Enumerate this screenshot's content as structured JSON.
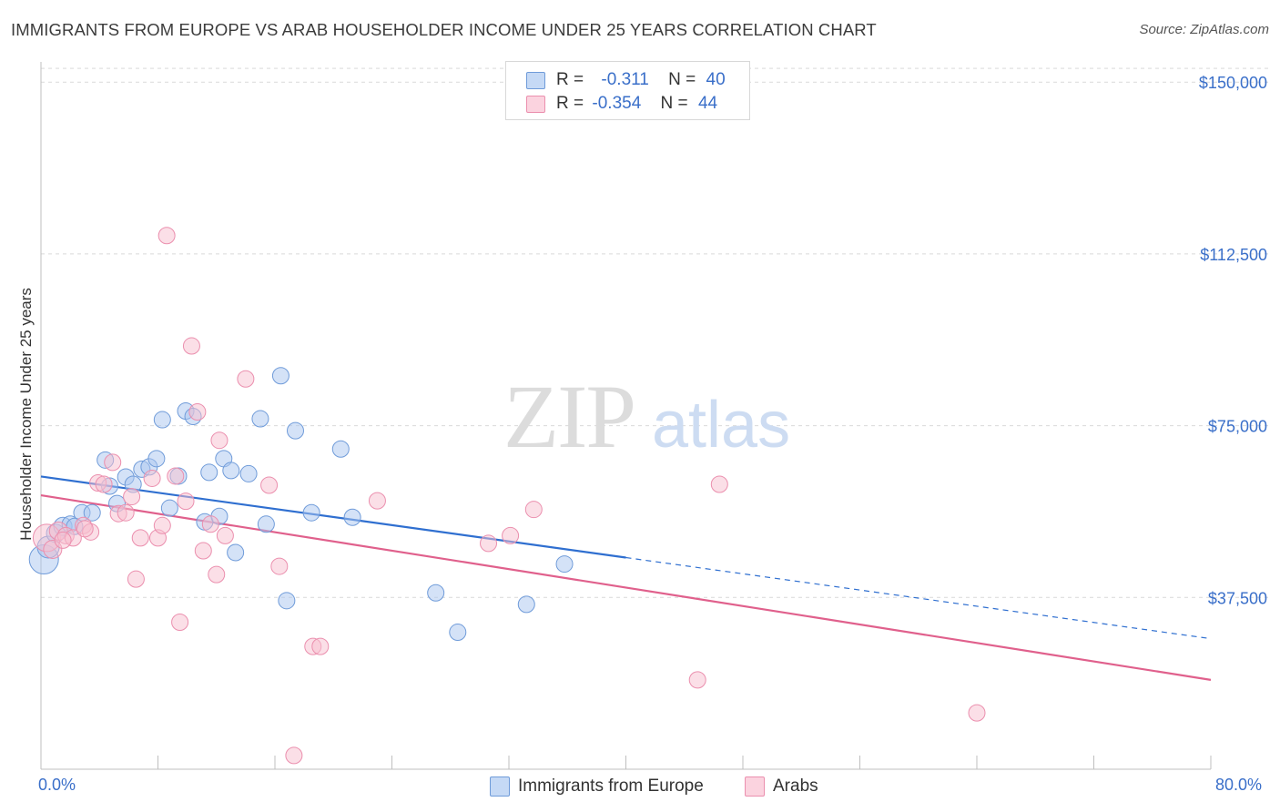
{
  "header": {
    "title": "IMMIGRANTS FROM EUROPE VS ARAB HOUSEHOLDER INCOME UNDER 25 YEARS CORRELATION CHART",
    "source": "Source: ZipAtlas.com"
  },
  "watermark": {
    "zip": "ZIP",
    "atlas": "atlas"
  },
  "legend": {
    "rows": [
      {
        "r_label": "R =",
        "r_value": "-0.311",
        "n_label": "N =",
        "n_value": "40"
      },
      {
        "r_label": "R =",
        "r_value": "-0.354",
        "n_label": "N =",
        "n_value": "44"
      }
    ]
  },
  "bottom_legend": {
    "series1": "Immigrants from Europe",
    "series2": "Arabs"
  },
  "x_axis": {
    "min_label": "0.0%",
    "max_label": "80.0%"
  },
  "chart_data": {
    "type": "scatter",
    "title": "IMMIGRANTS FROM EUROPE VS ARAB HOUSEHOLDER INCOME UNDER 25 YEARS CORRELATION CHART",
    "xlabel": "",
    "ylabel": "Householder Income Under 25 years",
    "xlim": [
      0,
      80
    ],
    "ylim": [
      0,
      156000
    ],
    "x_unit": "%",
    "y_ticks": [
      37500,
      75000,
      112500,
      150000
    ],
    "y_tick_labels": [
      "$37,500",
      "$75,000",
      "$112,500",
      "$150,000"
    ],
    "grid": true,
    "legend_placement": "top-center and bottom",
    "colors": {
      "series1_fill": "#a9c6ef",
      "series1_stroke": "#6f9bd9",
      "series1_line": "#2f6fd0",
      "series2_fill": "#f7bfd0",
      "series2_stroke": "#eb8fae",
      "series2_line": "#e0608c",
      "tick_label": "#3a6fc9"
    },
    "series": [
      {
        "name": "Immigrants from Europe",
        "r": -0.311,
        "n": 40,
        "trend": {
          "x0": 0,
          "y0": 63900,
          "x1": 40,
          "y1": 46200,
          "dash_to_x": 80,
          "dash_to_y": 28500
        },
        "points": [
          [
            0.2,
            45800,
            16
          ],
          [
            0.5,
            48500,
            12
          ],
          [
            1.0,
            51500,
            10
          ],
          [
            1.5,
            53000,
            10
          ],
          [
            2.0,
            53500,
            9
          ],
          [
            2.8,
            56000,
            9
          ],
          [
            3.5,
            56000,
            9
          ],
          [
            4.4,
            67500,
            9
          ],
          [
            4.7,
            61800,
            9
          ],
          [
            5.2,
            58000,
            9
          ],
          [
            5.8,
            63800,
            9
          ],
          [
            6.3,
            62200,
            9
          ],
          [
            6.9,
            65500,
            9
          ],
          [
            7.4,
            66000,
            9
          ],
          [
            7.9,
            67800,
            9
          ],
          [
            8.3,
            76300,
            9
          ],
          [
            8.8,
            57000,
            9
          ],
          [
            9.4,
            64000,
            9
          ],
          [
            9.9,
            78200,
            9
          ],
          [
            10.4,
            77000,
            9
          ],
          [
            11.2,
            54000,
            9
          ],
          [
            11.5,
            64800,
            9
          ],
          [
            12.2,
            55200,
            9
          ],
          [
            12.5,
            67800,
            9
          ],
          [
            13.0,
            65200,
            9
          ],
          [
            13.3,
            47300,
            9
          ],
          [
            14.2,
            64500,
            9
          ],
          [
            15.0,
            76500,
            9
          ],
          [
            15.4,
            53500,
            9
          ],
          [
            16.4,
            85900,
            9
          ],
          [
            16.8,
            36800,
            9
          ],
          [
            17.4,
            73900,
            9
          ],
          [
            18.5,
            56000,
            9
          ],
          [
            20.5,
            69900,
            9
          ],
          [
            21.3,
            55000,
            9
          ],
          [
            27.0,
            38500,
            9
          ],
          [
            28.5,
            29900,
            9
          ],
          [
            33.2,
            36000,
            9
          ],
          [
            35.8,
            44800,
            9
          ],
          [
            2.3,
            53000,
            9
          ]
        ]
      },
      {
        "name": "Arabs",
        "r": -0.354,
        "n": 44,
        "trend": {
          "x0": 0,
          "y0": 59800,
          "x1": 80,
          "y1": 19500
        },
        "points": [
          [
            0.4,
            50500,
            15
          ],
          [
            0.8,
            48000,
            10
          ],
          [
            1.2,
            52000,
            10
          ],
          [
            1.7,
            51000,
            9
          ],
          [
            2.2,
            50500,
            9
          ],
          [
            2.9,
            53200,
            9
          ],
          [
            3.4,
            51800,
            9
          ],
          [
            3.9,
            62500,
            9
          ],
          [
            4.3,
            62200,
            9
          ],
          [
            4.9,
            67000,
            9
          ],
          [
            5.3,
            55800,
            9
          ],
          [
            5.8,
            56000,
            9
          ],
          [
            6.2,
            59500,
            9
          ],
          [
            6.5,
            41500,
            9
          ],
          [
            6.8,
            50500,
            9
          ],
          [
            7.6,
            63500,
            9
          ],
          [
            8.0,
            50500,
            9
          ],
          [
            8.3,
            53200,
            9
          ],
          [
            8.6,
            116500,
            9
          ],
          [
            9.2,
            64000,
            9
          ],
          [
            9.5,
            32100,
            9
          ],
          [
            9.9,
            58500,
            9
          ],
          [
            10.3,
            92400,
            9
          ],
          [
            10.7,
            78000,
            9
          ],
          [
            11.1,
            47700,
            9
          ],
          [
            11.6,
            53500,
            9
          ],
          [
            12.0,
            42500,
            9
          ],
          [
            12.2,
            71800,
            9
          ],
          [
            12.6,
            51000,
            9
          ],
          [
            14.0,
            85200,
            9
          ],
          [
            15.6,
            62000,
            9
          ],
          [
            16.3,
            44300,
            9
          ],
          [
            17.3,
            3000,
            9
          ],
          [
            18.6,
            26800,
            9
          ],
          [
            19.1,
            26800,
            9
          ],
          [
            23.0,
            58600,
            9
          ],
          [
            30.6,
            49300,
            9
          ],
          [
            32.1,
            51000,
            9
          ],
          [
            33.7,
            56700,
            9
          ],
          [
            44.9,
            19500,
            9
          ],
          [
            46.4,
            62200,
            9
          ],
          [
            64.0,
            12300,
            9
          ],
          [
            1.5,
            50000,
            9
          ],
          [
            3.0,
            52500,
            9
          ]
        ]
      }
    ]
  }
}
